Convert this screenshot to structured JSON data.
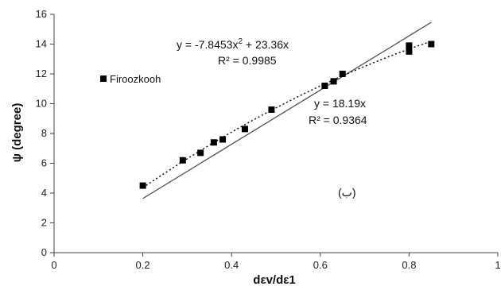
{
  "chart_data": {
    "type": "scatter",
    "xlabel": "dεv/dε1",
    "ylabel": "ψ (degree)",
    "xlim": [
      0,
      1
    ],
    "ylim": [
      0,
      16
    ],
    "x_ticks": [
      "0",
      "0.2",
      "0.4",
      "0.6",
      "0.8",
      "1"
    ],
    "y_ticks": [
      "0",
      "2",
      "4",
      "6",
      "8",
      "10",
      "12",
      "14",
      "16"
    ],
    "grid": false,
    "legend_position": "left",
    "series": [
      {
        "name": "Firoozkooh",
        "x": [
          0.2,
          0.29,
          0.33,
          0.36,
          0.38,
          0.43,
          0.49,
          0.61,
          0.63,
          0.65,
          0.8,
          0.8,
          0.85
        ],
        "y": [
          4.5,
          6.2,
          6.7,
          7.4,
          7.6,
          8.3,
          9.6,
          11.2,
          11.5,
          12.0,
          13.5,
          13.9,
          14.0
        ]
      }
    ],
    "fits": {
      "polynomial": {
        "a": -7.8453,
        "b": 23.36,
        "x_range": [
          0.2,
          0.85
        ],
        "line_style": "dotted"
      },
      "linear": {
        "slope": 18.19,
        "x_range": [
          0.2,
          0.85
        ],
        "line_style": "solid"
      }
    },
    "annotations": {
      "poly_eq_main": "y = -7.8453x",
      "poly_eq_sup": "2",
      "poly_eq_rest": " + 23.36x",
      "poly_r2": "R² = 0.9985",
      "lin_eq": "y = 18.19x",
      "lin_r2": "R² = 0.9364",
      "panel_label": "(ب)"
    },
    "colors": {
      "marker": "#000000",
      "poly_line": "#000000",
      "linear_line": "#555555",
      "axis": "#444444"
    }
  }
}
